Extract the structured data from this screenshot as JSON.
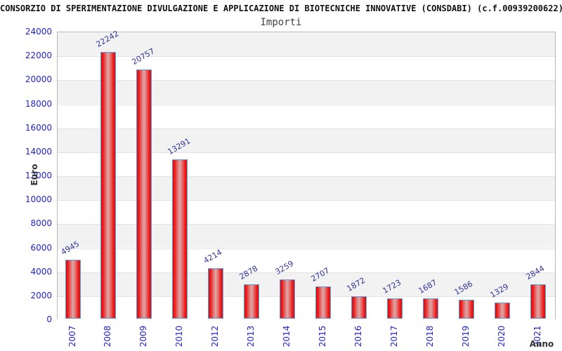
{
  "header": {
    "title": "CONSORZIO DI SPERIMENTAZIONE DIVULGAZIONE E APPLICAZIONE DI BIOTECNICHE INNOVATIVE (CONSDABI) (c.f.00939200622)",
    "subtitle": "Importi"
  },
  "chart_data": {
    "type": "bar",
    "title": "Importi",
    "xlabel": "Anno",
    "ylabel": "Euro",
    "categories": [
      "2007",
      "2008",
      "2009",
      "2010",
      "2012",
      "2013",
      "2014",
      "2015",
      "2016",
      "2017",
      "2018",
      "2019",
      "2020",
      "2021"
    ],
    "values": [
      4945,
      22242,
      20757,
      13291,
      4214,
      2878,
      3259,
      2707,
      1872,
      1723,
      1687,
      1586,
      1329,
      2844
    ],
    "ylim": [
      0,
      24000
    ],
    "ytick_step": 2000,
    "legend": "none",
    "grid": "horizontal-bands-every-2000",
    "colors": {
      "tick_label": "#2222cc",
      "value_label": "#333399",
      "bar_edge": "#d21212",
      "bar_center": "#dda8a8",
      "bar_border": "#58a2e2",
      "band_gray": "#f2f2f2",
      "band_white": "#ffffff",
      "gridline": "#e2e2e2",
      "axis_text": "#333333",
      "title_text": "#111111"
    }
  }
}
